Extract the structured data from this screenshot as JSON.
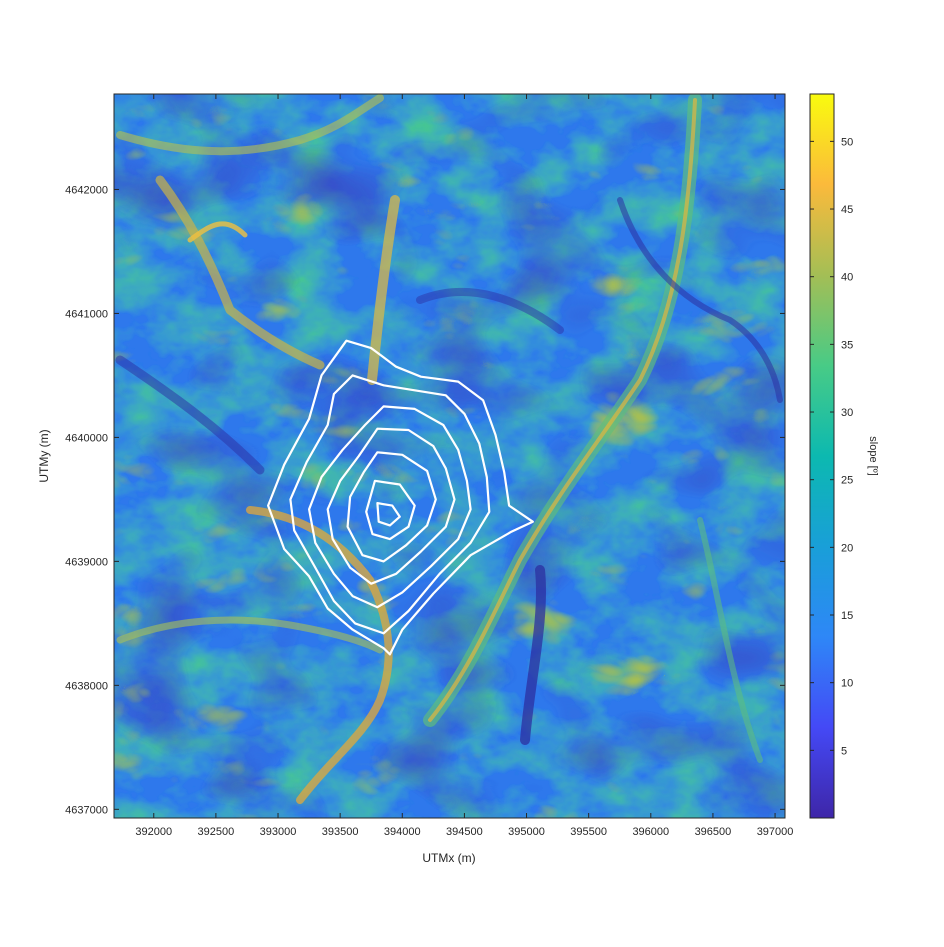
{
  "chart_data": {
    "type": "heatmap",
    "title": "",
    "xlabel": "UTMx (m)",
    "ylabel": "UTMy (m)",
    "xlim": [
      391680,
      397080
    ],
    "ylim": [
      4636930,
      4642770
    ],
    "xticks": [
      392000,
      392500,
      393000,
      393500,
      394000,
      394500,
      395000,
      395500,
      396000,
      396500,
      397000
    ],
    "xtick_labels": [
      "392000",
      "392500",
      "393000",
      "393500",
      "394000",
      "394500",
      "395000",
      "395500",
      "396000",
      "396500",
      "397000"
    ],
    "yticks": [
      4637000,
      4638000,
      4639000,
      4640000,
      4641000,
      4642000
    ],
    "ytick_labels": [
      "4637000",
      "4638000",
      "4639000",
      "4640000",
      "4641000",
      "4642000"
    ],
    "colorbar": {
      "label": "slope [º]",
      "lim": [
        0,
        53.5
      ],
      "ticks": [
        5,
        10,
        15,
        20,
        25,
        30,
        35,
        40,
        45,
        50
      ],
      "tick_labels": [
        "5",
        "10",
        "15",
        "20",
        "25",
        "30",
        "35",
        "40",
        "45",
        "50"
      ],
      "colormap": "parula",
      "colors": [
        "#3e26a8",
        "#4449f6",
        "#2e87f7",
        "#199fd8",
        "#0cb9b0",
        "#48cb86",
        "#a4be55",
        "#fbba3b",
        "#f9fb0e"
      ]
    },
    "grid": false,
    "contour_color": "#ffffff",
    "contours": [
      [
        [
          393550,
          4640780
        ],
        [
          393750,
          4640720
        ],
        [
          393950,
          4640570
        ],
        [
          394150,
          4640490
        ],
        [
          394450,
          4640450
        ],
        [
          394650,
          4640300
        ],
        [
          394750,
          4640020
        ],
        [
          394820,
          4639720
        ],
        [
          394860,
          4639450
        ],
        [
          395050,
          4639320
        ],
        [
          394880,
          4639240
        ],
        [
          394550,
          4639050
        ],
        [
          394250,
          4638740
        ],
        [
          394000,
          4638450
        ],
        [
          393900,
          4638250
        ],
        [
          393850,
          4638300
        ],
        [
          393600,
          4638450
        ],
        [
          393400,
          4638620
        ],
        [
          393250,
          4638880
        ],
        [
          393050,
          4639100
        ],
        [
          392920,
          4639450
        ],
        [
          393050,
          4639780
        ],
        [
          393250,
          4640150
        ],
        [
          393350,
          4640500
        ],
        [
          393550,
          4640780
        ]
      ],
      [
        [
          393600,
          4640500
        ],
        [
          393850,
          4640420
        ],
        [
          394100,
          4640380
        ],
        [
          394350,
          4640340
        ],
        [
          394500,
          4640190
        ],
        [
          394620,
          4639950
        ],
        [
          394680,
          4639680
        ],
        [
          394700,
          4639400
        ],
        [
          394550,
          4639150
        ],
        [
          394300,
          4638900
        ],
        [
          394050,
          4638600
        ],
        [
          393850,
          4638420
        ],
        [
          393620,
          4638500
        ],
        [
          393450,
          4638680
        ],
        [
          393300,
          4638950
        ],
        [
          393130,
          4639250
        ],
        [
          393100,
          4639500
        ],
        [
          393230,
          4639800
        ],
        [
          393400,
          4640100
        ],
        [
          393450,
          4640350
        ],
        [
          393600,
          4640500
        ]
      ],
      [
        [
          393850,
          4640250
        ],
        [
          394100,
          4640230
        ],
        [
          394330,
          4640100
        ],
        [
          394450,
          4639900
        ],
        [
          394520,
          4639650
        ],
        [
          394550,
          4639420
        ],
        [
          394450,
          4639180
        ],
        [
          394230,
          4638960
        ],
        [
          394000,
          4638750
        ],
        [
          393800,
          4638630
        ],
        [
          393600,
          4638720
        ],
        [
          393450,
          4638900
        ],
        [
          393300,
          4639150
        ],
        [
          393250,
          4639420
        ],
        [
          393350,
          4639680
        ],
        [
          393520,
          4639900
        ],
        [
          393700,
          4640100
        ],
        [
          393850,
          4640250
        ]
      ],
      [
        [
          393800,
          4640070
        ],
        [
          394050,
          4640060
        ],
        [
          394250,
          4639930
        ],
        [
          394350,
          4639750
        ],
        [
          394420,
          4639500
        ],
        [
          394350,
          4639280
        ],
        [
          394150,
          4639080
        ],
        [
          393950,
          4638900
        ],
        [
          393750,
          4638820
        ],
        [
          393580,
          4638950
        ],
        [
          393440,
          4639180
        ],
        [
          393400,
          4639420
        ],
        [
          393500,
          4639650
        ],
        [
          393650,
          4639850
        ],
        [
          393800,
          4640070
        ]
      ],
      [
        [
          393800,
          4639880
        ],
        [
          394000,
          4639860
        ],
        [
          394200,
          4639730
        ],
        [
          394270,
          4639500
        ],
        [
          394200,
          4639290
        ],
        [
          394030,
          4639130
        ],
        [
          393850,
          4639000
        ],
        [
          393680,
          4639050
        ],
        [
          393560,
          4639280
        ],
        [
          393580,
          4639520
        ],
        [
          393690,
          4639720
        ],
        [
          393800,
          4639880
        ]
      ],
      [
        [
          393780,
          4639650
        ],
        [
          393980,
          4639620
        ],
        [
          394100,
          4639450
        ],
        [
          394050,
          4639280
        ],
        [
          393900,
          4639180
        ],
        [
          393760,
          4639220
        ],
        [
          393710,
          4639400
        ],
        [
          393780,
          4639650
        ]
      ],
      [
        [
          393800,
          4639470
        ],
        [
          393920,
          4639450
        ],
        [
          393980,
          4639360
        ],
        [
          393900,
          4639290
        ],
        [
          393810,
          4639320
        ],
        [
          393800,
          4639470
        ]
      ]
    ]
  }
}
